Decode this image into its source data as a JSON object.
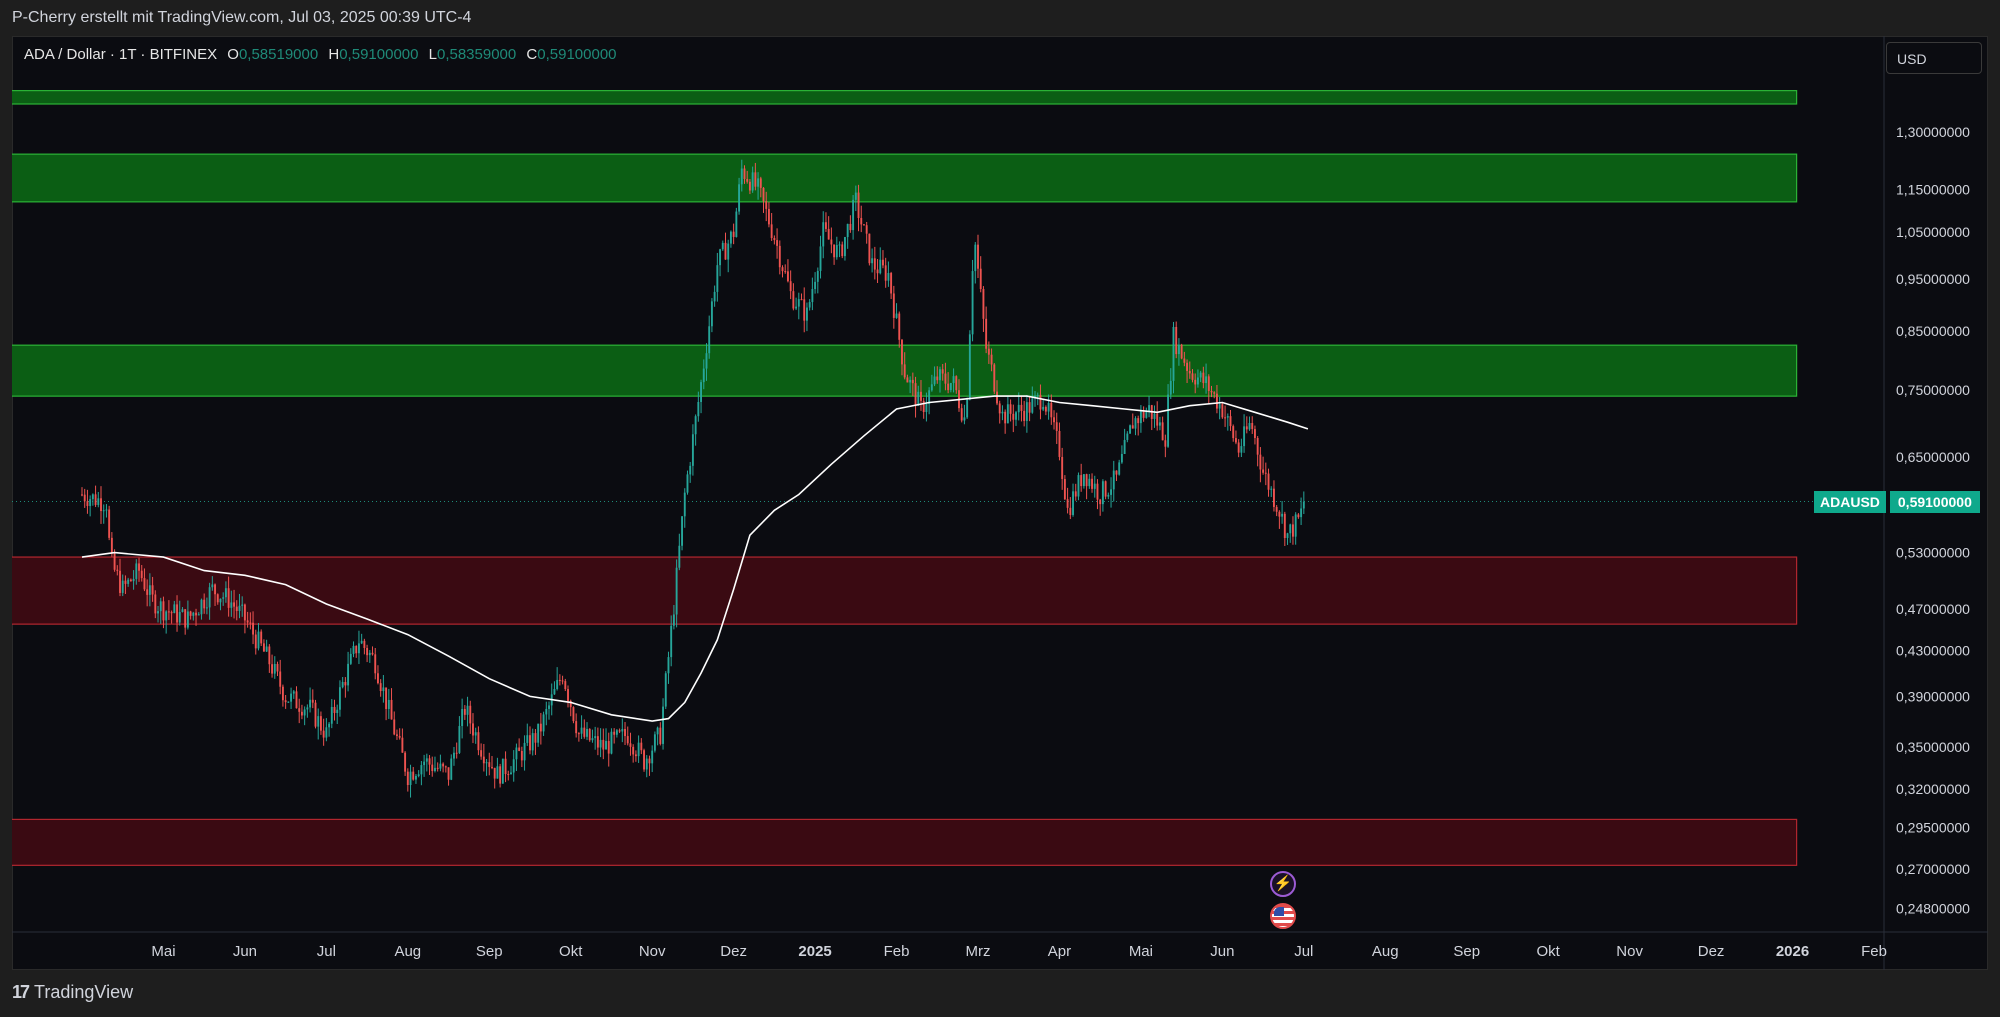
{
  "header": {
    "title": "P-Cherry erstellt mit TradingView.com, Jul 03, 2025 00:39 UTC-4"
  },
  "legend": {
    "symbol": "ADA / Dollar · 1T · BITFINEX",
    "o_label": "O",
    "o_value": "0,58519000",
    "h_label": "H",
    "h_value": "0,59100000",
    "l_label": "L",
    "l_value": "0,58359000",
    "c_label": "C",
    "c_value": "0,59100000"
  },
  "currency": "USD",
  "price_tag": {
    "symbol": "ADAUSD",
    "value": "0,59100000"
  },
  "footer": {
    "brand": "TradingView",
    "logo_mark": "17"
  },
  "icons": {
    "event_1": "lightning-icon",
    "event_2": "us-flag-icon"
  },
  "colors": {
    "background": "#0b0c11",
    "up_candle": "#26a69a",
    "down_candle": "#ef5350",
    "ma_line": "#ffffff",
    "green_zone": "#0b5e14",
    "red_zone": "#3a0a12",
    "accent": "#0fa98c"
  },
  "chart_data": {
    "type": "candlestick",
    "title": "ADA / Dollar · 1T · BITFINEX",
    "y_scale": "log",
    "ylim": [
      0.24,
      1.38
    ],
    "y_ticks": [
      {
        "v": 1.3,
        "label": "1,30000000"
      },
      {
        "v": 1.15,
        "label": "1,15000000"
      },
      {
        "v": 1.05,
        "label": "1,05000000"
      },
      {
        "v": 0.95,
        "label": "0,95000000"
      },
      {
        "v": 0.85,
        "label": "0,85000000"
      },
      {
        "v": 0.75,
        "label": "0,75000000"
      },
      {
        "v": 0.65,
        "label": "0,65000000"
      },
      {
        "v": 0.53,
        "label": "0,53000000"
      },
      {
        "v": 0.47,
        "label": "0,47000000"
      },
      {
        "v": 0.43,
        "label": "0,43000000"
      },
      {
        "v": 0.39,
        "label": "0,39000000"
      },
      {
        "v": 0.35,
        "label": "0,35000000"
      },
      {
        "v": 0.32,
        "label": "0,32000000"
      },
      {
        "v": 0.295,
        "label": "0,29500000"
      },
      {
        "v": 0.27,
        "label": "0,27000000"
      },
      {
        "v": 0.248,
        "label": "0,24800000"
      }
    ],
    "x_ticks": [
      {
        "m": 1.0,
        "label": "Mai",
        "bold": false
      },
      {
        "m": 2.0,
        "label": "Jun",
        "bold": false
      },
      {
        "m": 3.0,
        "label": "Jul",
        "bold": false
      },
      {
        "m": 4.0,
        "label": "Aug",
        "bold": false
      },
      {
        "m": 5.0,
        "label": "Sep",
        "bold": false
      },
      {
        "m": 6.0,
        "label": "Okt",
        "bold": false
      },
      {
        "m": 7.0,
        "label": "Nov",
        "bold": false
      },
      {
        "m": 8.0,
        "label": "Dez",
        "bold": false
      },
      {
        "m": 9.0,
        "label": "2025",
        "bold": true
      },
      {
        "m": 10.0,
        "label": "Feb",
        "bold": false
      },
      {
        "m": 11.0,
        "label": "Mrz",
        "bold": false
      },
      {
        "m": 12.0,
        "label": "Apr",
        "bold": false
      },
      {
        "m": 13.0,
        "label": "Mai",
        "bold": false
      },
      {
        "m": 14.0,
        "label": "Jun",
        "bold": false
      },
      {
        "m": 15.0,
        "label": "Jul",
        "bold": false
      },
      {
        "m": 16.0,
        "label": "Aug",
        "bold": false
      },
      {
        "m": 17.0,
        "label": "Sep",
        "bold": false
      },
      {
        "m": 18.0,
        "label": "Okt",
        "bold": false
      },
      {
        "m": 19.0,
        "label": "Nov",
        "bold": false
      },
      {
        "m": 20.0,
        "label": "Dez",
        "bold": false
      },
      {
        "m": 21.0,
        "label": "2026",
        "bold": true
      },
      {
        "m": 22.0,
        "label": "Feb",
        "bold": false
      }
    ],
    "xlim_months": [
      0.0,
      22.0
    ],
    "zones": [
      {
        "type": "resistance",
        "low": 1.38,
        "high": 1.42
      },
      {
        "type": "resistance",
        "low": 1.12,
        "high": 1.24
      },
      {
        "type": "resistance",
        "low": 0.74,
        "high": 0.825
      },
      {
        "type": "support",
        "low": 0.455,
        "high": 0.525
      },
      {
        "type": "support",
        "low": 0.272,
        "high": 0.3
      }
    ],
    "zone_end_month": 21.05,
    "last_price": 0.591,
    "price_path": [
      [
        0.0,
        0.6
      ],
      [
        0.3,
        0.59
      ],
      [
        0.35,
        0.52
      ],
      [
        0.5,
        0.49
      ],
      [
        0.7,
        0.51
      ],
      [
        0.85,
        0.48
      ],
      [
        1.0,
        0.47
      ],
      [
        1.3,
        0.46
      ],
      [
        1.6,
        0.49
      ],
      [
        1.8,
        0.48
      ],
      [
        2.0,
        0.46
      ],
      [
        2.3,
        0.42
      ],
      [
        2.5,
        0.39
      ],
      [
        2.8,
        0.38
      ],
      [
        3.0,
        0.36
      ],
      [
        3.2,
        0.4
      ],
      [
        3.4,
        0.44
      ],
      [
        3.6,
        0.42
      ],
      [
        3.8,
        0.37
      ],
      [
        4.0,
        0.33
      ],
      [
        4.2,
        0.34
      ],
      [
        4.5,
        0.33
      ],
      [
        4.7,
        0.38
      ],
      [
        4.9,
        0.35
      ],
      [
        5.1,
        0.33
      ],
      [
        5.3,
        0.34
      ],
      [
        5.6,
        0.36
      ],
      [
        5.9,
        0.41
      ],
      [
        6.1,
        0.36
      ],
      [
        6.4,
        0.35
      ],
      [
        6.7,
        0.36
      ],
      [
        6.9,
        0.34
      ],
      [
        7.1,
        0.36
      ],
      [
        7.25,
        0.46
      ],
      [
        7.4,
        0.6
      ],
      [
        7.6,
        0.76
      ],
      [
        7.8,
        0.98
      ],
      [
        8.0,
        1.05
      ],
      [
        8.1,
        1.2
      ],
      [
        8.3,
        1.15
      ],
      [
        8.5,
        1.04
      ],
      [
        8.7,
        0.92
      ],
      [
        8.9,
        0.88
      ],
      [
        9.1,
        1.05
      ],
      [
        9.3,
        1.0
      ],
      [
        9.5,
        1.12
      ],
      [
        9.7,
        0.98
      ],
      [
        9.9,
        0.96
      ],
      [
        10.1,
        0.78
      ],
      [
        10.3,
        0.72
      ],
      [
        10.5,
        0.77
      ],
      [
        10.7,
        0.76
      ],
      [
        10.85,
        0.7
      ],
      [
        10.95,
        1.05
      ],
      [
        11.1,
        0.82
      ],
      [
        11.3,
        0.71
      ],
      [
        11.6,
        0.72
      ],
      [
        11.8,
        0.74
      ],
      [
        12.0,
        0.66
      ],
      [
        12.1,
        0.58
      ],
      [
        12.3,
        0.63
      ],
      [
        12.5,
        0.6
      ],
      [
        12.7,
        0.62
      ],
      [
        12.9,
        0.7
      ],
      [
        13.1,
        0.72
      ],
      [
        13.3,
        0.68
      ],
      [
        13.4,
        0.84
      ],
      [
        13.6,
        0.78
      ],
      [
        13.8,
        0.76
      ],
      [
        14.0,
        0.72
      ],
      [
        14.2,
        0.66
      ],
      [
        14.35,
        0.7
      ],
      [
        14.5,
        0.63
      ],
      [
        14.7,
        0.58
      ],
      [
        14.8,
        0.55
      ],
      [
        14.95,
        0.57
      ],
      [
        15.0,
        0.591
      ]
    ],
    "ma_path": [
      [
        0.0,
        0.525
      ],
      [
        0.4,
        0.53
      ],
      [
        1.0,
        0.525
      ],
      [
        1.5,
        0.51
      ],
      [
        2.0,
        0.505
      ],
      [
        2.5,
        0.495
      ],
      [
        3.0,
        0.475
      ],
      [
        3.5,
        0.46
      ],
      [
        4.0,
        0.445
      ],
      [
        4.5,
        0.425
      ],
      [
        5.0,
        0.405
      ],
      [
        5.5,
        0.39
      ],
      [
        6.0,
        0.385
      ],
      [
        6.5,
        0.375
      ],
      [
        7.0,
        0.37
      ],
      [
        7.2,
        0.372
      ],
      [
        7.4,
        0.385
      ],
      [
        7.6,
        0.41
      ],
      [
        7.8,
        0.44
      ],
      [
        8.0,
        0.49
      ],
      [
        8.2,
        0.55
      ],
      [
        8.5,
        0.58
      ],
      [
        8.8,
        0.6
      ],
      [
        9.2,
        0.64
      ],
      [
        9.6,
        0.68
      ],
      [
        10.0,
        0.72
      ],
      [
        10.4,
        0.73
      ],
      [
        10.8,
        0.735
      ],
      [
        11.2,
        0.74
      ],
      [
        11.6,
        0.74
      ],
      [
        12.0,
        0.73
      ],
      [
        12.4,
        0.725
      ],
      [
        12.8,
        0.72
      ],
      [
        13.2,
        0.715
      ],
      [
        13.6,
        0.725
      ],
      [
        14.0,
        0.73
      ],
      [
        14.4,
        0.715
      ],
      [
        14.8,
        0.7
      ],
      [
        15.05,
        0.69
      ]
    ]
  }
}
